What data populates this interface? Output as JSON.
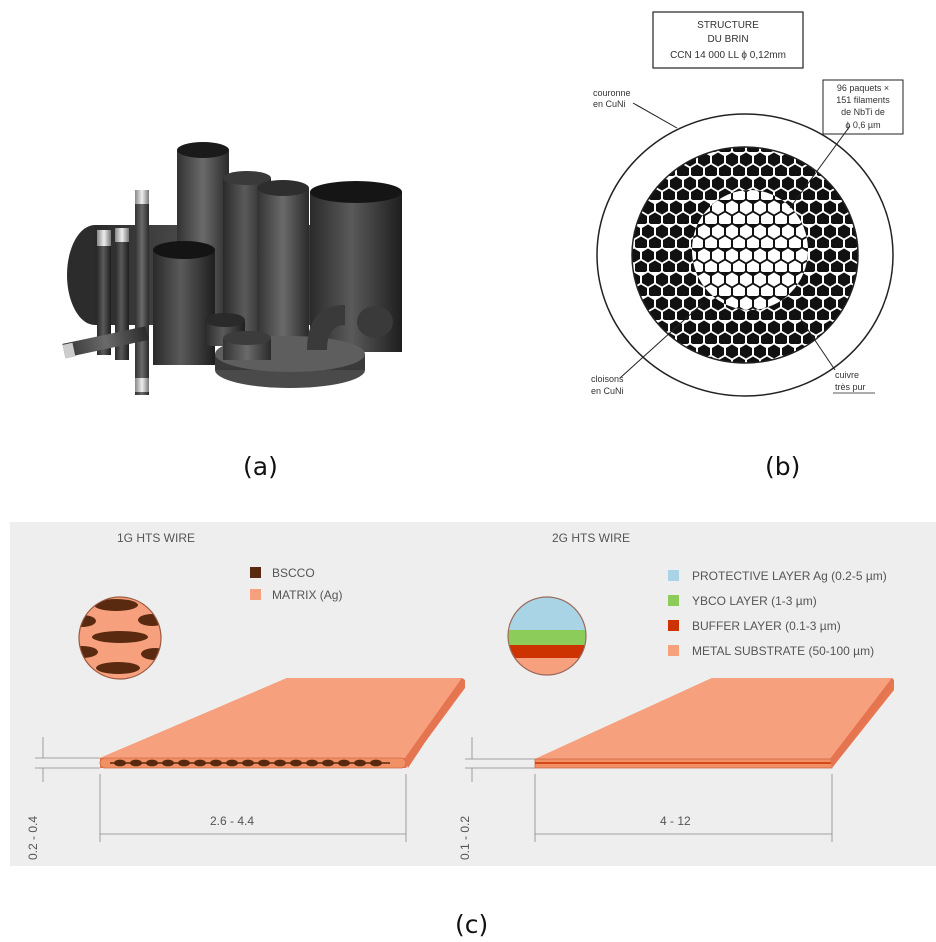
{
  "labels": {
    "a": "(a)",
    "b": "(b)",
    "c": "(c)"
  },
  "panel_b": {
    "title_lines": [
      "STRUCTURE",
      "DU BRIN",
      "CCN 14 000 LL  ϕ 0,12mm"
    ],
    "couronne": [
      "couronne",
      "en CuNi"
    ],
    "paquets": [
      "96 paquets ×",
      "151 filaments",
      "de NbTi de",
      "ϕ 0,6 µm"
    ],
    "cloisons": [
      "cloisons",
      "en CuNi"
    ],
    "cuivre": [
      "cuivre",
      "très pur"
    ]
  },
  "panel_c": {
    "left": {
      "title": "1G HTS WIRE",
      "legend": [
        {
          "label": "BSCCO",
          "color": "#5a2a10"
        },
        {
          "label": "MATRIX (Ag)",
          "color": "#f7a07e"
        }
      ],
      "width_dim": "2.6 - 4.4",
      "thickness_dim": "0.2 - 0.4"
    },
    "right": {
      "title": "2G HTS WIRE",
      "legend": [
        {
          "label": "PROTECTIVE LAYER Ag (0.2-5 µm)",
          "color": "#a8d4e6"
        },
        {
          "label": "YBCO LAYER (1-3 µm)",
          "color": "#8ccc5a"
        },
        {
          "label": "BUFFER LAYER (0.1-3 µm)",
          "color": "#cc3300"
        },
        {
          "label": "METAL SUBSTRATE (50-100 µm)",
          "color": "#f7a07e"
        }
      ],
      "width_dim": "4 - 12",
      "thickness_dim": "0.1 - 0.2"
    }
  }
}
